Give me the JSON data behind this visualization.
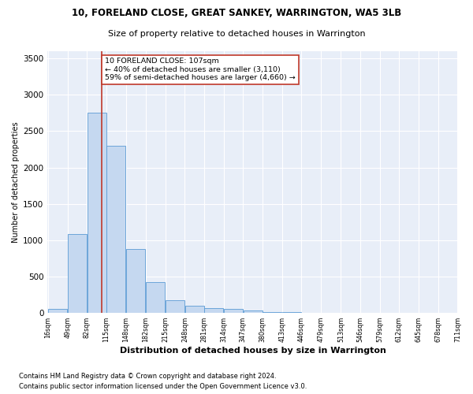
{
  "title": "10, FORELAND CLOSE, GREAT SANKEY, WARRINGTON, WA5 3LB",
  "subtitle": "Size of property relative to detached houses in Warrington",
  "xlabel": "Distribution of detached houses by size in Warrington",
  "ylabel": "Number of detached properties",
  "footer_line1": "Contains HM Land Registry data © Crown copyright and database right 2024.",
  "footer_line2": "Contains public sector information licensed under the Open Government Licence v3.0.",
  "property_size": 107,
  "property_label": "10 FORELAND CLOSE: 107sqm",
  "annotation_line1": "← 40% of detached houses are smaller (3,110)",
  "annotation_line2": "59% of semi-detached houses are larger (4,660) →",
  "bar_color": "#c5d8f0",
  "bar_edge_color": "#5b9bd5",
  "vline_color": "#c0392b",
  "annotation_box_edge_color": "#c0392b",
  "bg_color": "#e8eef8",
  "bins": [
    16,
    49,
    82,
    115,
    148,
    182,
    215,
    248,
    281,
    314,
    347,
    380,
    413,
    446,
    479,
    513,
    546,
    579,
    612,
    645,
    678
  ],
  "values": [
    50,
    1080,
    2750,
    2300,
    880,
    420,
    170,
    100,
    60,
    50,
    30,
    10,
    5,
    2,
    1,
    0,
    0,
    0,
    0,
    0
  ],
  "ylim": [
    0,
    3600
  ],
  "yticks": [
    0,
    500,
    1000,
    1500,
    2000,
    2500,
    3000,
    3500
  ]
}
